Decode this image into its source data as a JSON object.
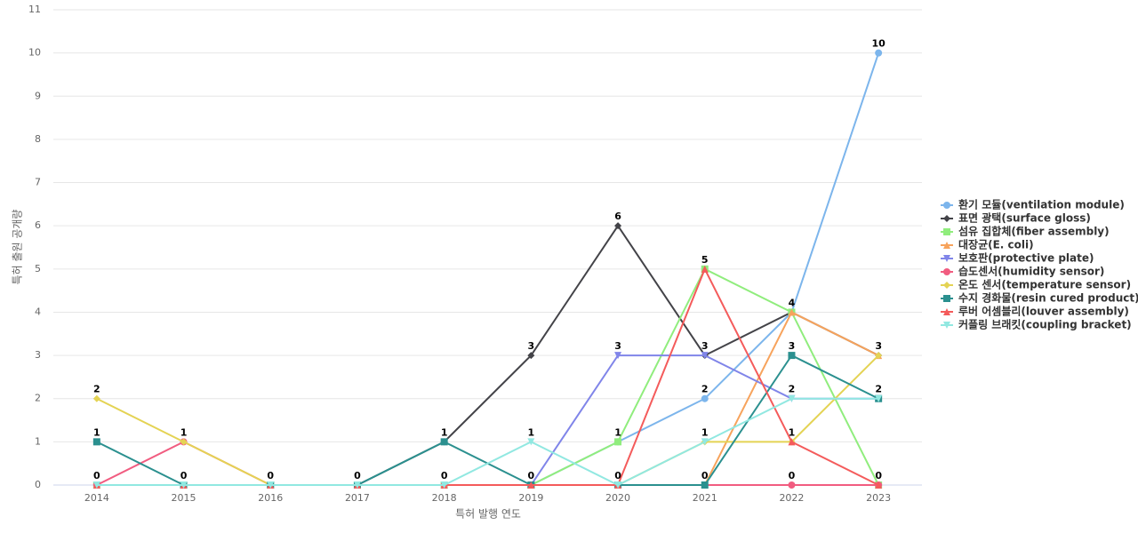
{
  "chart_data": {
    "type": "line",
    "x_label": "특허 발행 연도",
    "y_label": "특허 출원 공개량",
    "categories": [
      "2014",
      "2015",
      "2016",
      "2017",
      "2018",
      "2019",
      "2020",
      "2021",
      "2022",
      "2023"
    ],
    "ylim": [
      0,
      11
    ],
    "yticks": [
      0,
      1,
      2,
      3,
      4,
      5,
      6,
      7,
      8,
      9,
      10,
      11
    ],
    "grid": true,
    "legend": "right",
    "series": [
      {
        "name": "환기 모듈(ventilation module)",
        "color": "#7cb5ec",
        "symbol": "circle",
        "values": [
          0,
          0,
          0,
          0,
          0,
          0,
          1,
          2,
          4,
          10
        ]
      },
      {
        "name": "표면 광택(surface gloss)",
        "color": "#434348",
        "symbol": "diamond",
        "values": [
          0,
          0,
          0,
          0,
          1,
          3,
          6,
          3,
          4,
          3
        ]
      },
      {
        "name": "섬유 집합체(fiber assembly)",
        "color": "#90ed7d",
        "symbol": "square",
        "values": [
          0,
          0,
          0,
          0,
          0,
          0,
          1,
          5,
          4,
          0
        ]
      },
      {
        "name": "대장균(E. coli)",
        "color": "#f7a35c",
        "symbol": "triangle",
        "values": [
          0,
          0,
          0,
          0,
          0,
          0,
          0,
          0,
          4,
          3
        ]
      },
      {
        "name": "보호판(protective plate)",
        "color": "#8085e9",
        "symbol": "triangle-down",
        "values": [
          0,
          0,
          0,
          0,
          0,
          0,
          3,
          3,
          2,
          2
        ]
      },
      {
        "name": "습도센서(humidity sensor)",
        "color": "#f15c80",
        "symbol": "circle",
        "values": [
          0,
          1,
          0,
          0,
          0,
          0,
          0,
          0,
          0,
          0
        ]
      },
      {
        "name": "온도 센서(temperature sensor)",
        "color": "#e4d354",
        "symbol": "diamond",
        "values": [
          2,
          1,
          0,
          0,
          0,
          0,
          0,
          1,
          1,
          3
        ]
      },
      {
        "name": "수지 경화물(resin cured product)",
        "color": "#2b908f",
        "symbol": "square",
        "values": [
          1,
          0,
          0,
          0,
          1,
          0,
          0,
          0,
          3,
          2
        ]
      },
      {
        "name": "루버 어셈블리(louver assembly)",
        "color": "#f45b5b",
        "symbol": "triangle",
        "values": [
          0,
          0,
          0,
          0,
          0,
          0,
          0,
          5,
          1,
          0
        ]
      },
      {
        "name": "커플링 브래킷(coupling bracket)",
        "color": "#91e8e1",
        "symbol": "triangle-down",
        "values": [
          0,
          0,
          0,
          0,
          0,
          1,
          0,
          1,
          2,
          2
        ]
      }
    ]
  }
}
